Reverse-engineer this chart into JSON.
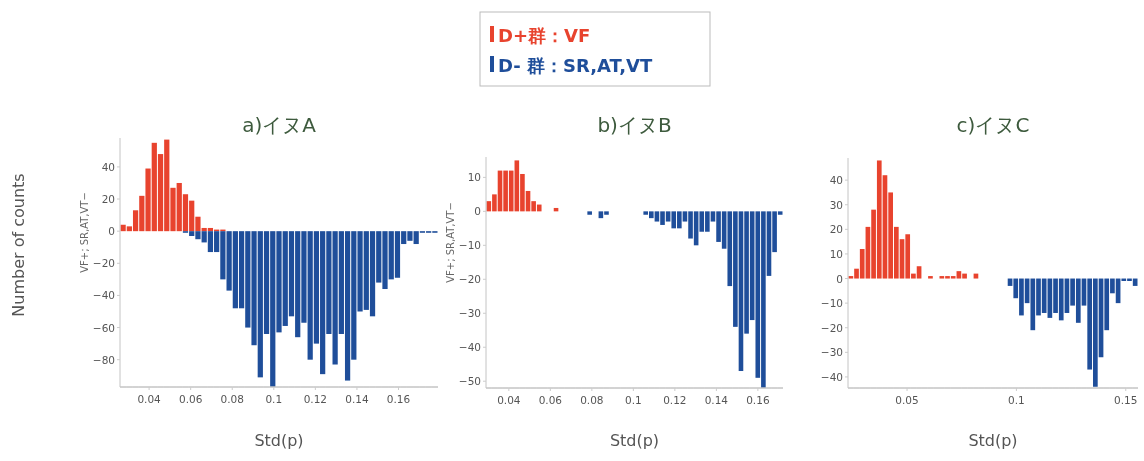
{
  "chart_data": [
    {
      "type": "histogram",
      "title": "a)イヌA",
      "xlabel": "Std(p)",
      "ylabel": "VF+; SR,AT,VT−",
      "annotations": [
        "Number of counts"
      ],
      "legend": "top",
      "bins": [
        0.026,
        0.029,
        0.032,
        0.035,
        0.038,
        0.041,
        0.044,
        0.047,
        0.05,
        0.053,
        0.056,
        0.059,
        0.062,
        0.065,
        0.068,
        0.071,
        0.074,
        0.077,
        0.08,
        0.083,
        0.086,
        0.089,
        0.092,
        0.095,
        0.098,
        0.101,
        0.104,
        0.107,
        0.11,
        0.113,
        0.116,
        0.119,
        0.122,
        0.125,
        0.128,
        0.131,
        0.134,
        0.137,
        0.14,
        0.143,
        0.146,
        0.149,
        0.152,
        0.155,
        0.158,
        0.161,
        0.164,
        0.167,
        0.17,
        0.173,
        0.176,
        0.179
      ],
      "series": [
        {
          "name": "D+群：VF",
          "color": "#e8432e",
          "values": [
            4,
            3,
            13,
            22,
            39,
            55,
            48,
            57,
            27,
            30,
            23,
            19,
            9,
            2,
            2,
            1,
            1,
            null,
            null,
            null,
            null,
            null,
            null,
            null,
            null,
            null,
            null,
            null,
            null,
            null,
            null,
            null,
            null,
            null,
            null,
            null,
            null,
            null,
            null,
            null,
            null,
            null,
            null,
            null,
            null,
            null,
            null,
            null,
            null,
            null,
            null
          ]
        },
        {
          "name": "D- 群：SR,AT,VT",
          "color": "#1f4e9a",
          "values": [
            null,
            null,
            null,
            null,
            null,
            null,
            null,
            null,
            null,
            null,
            -1,
            -3,
            -5,
            -7,
            -13,
            -13,
            -30,
            -37,
            -48,
            -48,
            -60,
            -71,
            -91,
            -64,
            -97,
            -63,
            -59,
            -53,
            -66,
            -57,
            -80,
            -70,
            -89,
            -64,
            -83,
            -64,
            -93,
            -80,
            -50,
            -49,
            -53,
            -32,
            -36,
            -30,
            -29,
            -8,
            -6,
            -8,
            -1,
            -1,
            -1
          ]
        }
      ],
      "xlim": [
        0.026,
        0.179
      ],
      "ylim": [
        -97,
        58
      ],
      "xticks": [
        0.04,
        0.06,
        0.08,
        0.1,
        0.12,
        0.14,
        0.16
      ],
      "yticks": [
        -80,
        -60,
        -40,
        -20,
        0,
        20,
        40
      ]
    },
    {
      "type": "histogram",
      "title": "b)イヌB",
      "xlabel": "Std(p)",
      "ylabel": "VF+; SR,AT,VT−",
      "bins": [
        0.029,
        0.0317,
        0.0344,
        0.0371,
        0.0398,
        0.0425,
        0.0452,
        0.0479,
        0.0506,
        0.0533,
        0.056,
        0.0587,
        0.0614,
        0.0641,
        0.0668,
        0.0695,
        0.0722,
        0.0749,
        0.0776,
        0.0803,
        0.083,
        0.0857,
        0.0884,
        0.0911,
        0.0938,
        0.0965,
        0.0992,
        0.1019,
        0.1046,
        0.1073,
        0.11,
        0.1127,
        0.1154,
        0.1181,
        0.1208,
        0.1235,
        0.1262,
        0.1289,
        0.1316,
        0.1343,
        0.137,
        0.1397,
        0.1424,
        0.1451,
        0.1478,
        0.1505,
        0.1532,
        0.1559,
        0.1586,
        0.1613,
        0.164,
        0.1667,
        0.1694,
        0.1721
      ],
      "series": [
        {
          "color": "#e8432e",
          "values": [
            3,
            5,
            12,
            12,
            12,
            15,
            11,
            6,
            3,
            2,
            null,
            null,
            1,
            null,
            null,
            null,
            null,
            null,
            null,
            null,
            null,
            null,
            null,
            null,
            null,
            null,
            null,
            null,
            null,
            null,
            null,
            null,
            null,
            null,
            null,
            null,
            null,
            null,
            null,
            null,
            null,
            null,
            null,
            null,
            null,
            null,
            null,
            null,
            null,
            null,
            null,
            null,
            null
          ]
        },
        {
          "color": "#1f4e9a",
          "values": [
            null,
            null,
            null,
            null,
            null,
            null,
            null,
            null,
            null,
            null,
            null,
            null,
            null,
            null,
            null,
            null,
            null,
            null,
            -1,
            null,
            -2,
            -1,
            null,
            null,
            null,
            null,
            null,
            null,
            -1,
            -2,
            -3,
            -4,
            -3,
            -5,
            -5,
            -3,
            -8,
            -10,
            -6,
            -6,
            -3,
            -9,
            -11,
            -22,
            -34,
            -47,
            -36,
            -32,
            -49,
            -52,
            -19,
            -12,
            -1
          ]
        }
      ],
      "xlim": [
        0.029,
        0.1721
      ],
      "ylim": [
        -52,
        16
      ],
      "xticks": [
        0.04,
        0.06,
        0.08,
        0.1,
        0.12,
        0.14,
        0.16
      ],
      "yticks": [
        -50,
        -40,
        -30,
        -20,
        -10,
        0,
        10
      ]
    },
    {
      "type": "histogram",
      "title": "c)イヌC",
      "xlabel": "Std(p)",
      "bins": [
        0.023,
        0.0256,
        0.0282,
        0.0308,
        0.0334,
        0.036,
        0.0386,
        0.0412,
        0.0438,
        0.0464,
        0.049,
        0.0516,
        0.0542,
        0.0568,
        0.0594,
        0.062,
        0.0646,
        0.0672,
        0.0698,
        0.0724,
        0.075,
        0.0776,
        0.0802,
        0.0828,
        0.0854,
        0.088,
        0.0906,
        0.0932,
        0.0958,
        0.0984,
        0.101,
        0.1036,
        0.1062,
        0.1088,
        0.1114,
        0.114,
        0.1166,
        0.1192,
        0.1218,
        0.1244,
        0.127,
        0.1296,
        0.1322,
        0.1348,
        0.1374,
        0.14,
        0.1426,
        0.1452,
        0.1478,
        0.1504,
        0.153,
        0.1556
      ],
      "series": [
        {
          "color": "#e8432e",
          "values": [
            1,
            4,
            12,
            21,
            28,
            48,
            42,
            35,
            21,
            16,
            18,
            2,
            5,
            null,
            1,
            null,
            1,
            1,
            1,
            3,
            2,
            null,
            2,
            null,
            null,
            null,
            null,
            null,
            null,
            null,
            null,
            null,
            null,
            null,
            null,
            null,
            null,
            null,
            null,
            null,
            null,
            null,
            null,
            null,
            null,
            null,
            null,
            null,
            null,
            null,
            null
          ]
        },
        {
          "color": "#1f4e9a",
          "values": [
            null,
            null,
            null,
            null,
            null,
            null,
            null,
            null,
            null,
            null,
            null,
            null,
            null,
            null,
            null,
            null,
            null,
            null,
            null,
            null,
            null,
            null,
            null,
            null,
            null,
            null,
            null,
            null,
            -3,
            -8,
            -15,
            -10,
            -21,
            -15,
            -14,
            -16,
            -14,
            -17,
            -14,
            -11,
            -18,
            -11,
            -37,
            -44,
            -32,
            -21,
            -6,
            -10,
            -1,
            -1,
            -3
          ]
        }
      ],
      "xlim": [
        0.023,
        0.1556
      ],
      "ylim": [
        -44.5,
        49
      ],
      "xticks": [
        0.05,
        0.1,
        0.15
      ],
      "yticks": [
        -40,
        -30,
        -20,
        -10,
        0,
        10,
        20,
        30,
        40
      ]
    }
  ]
}
